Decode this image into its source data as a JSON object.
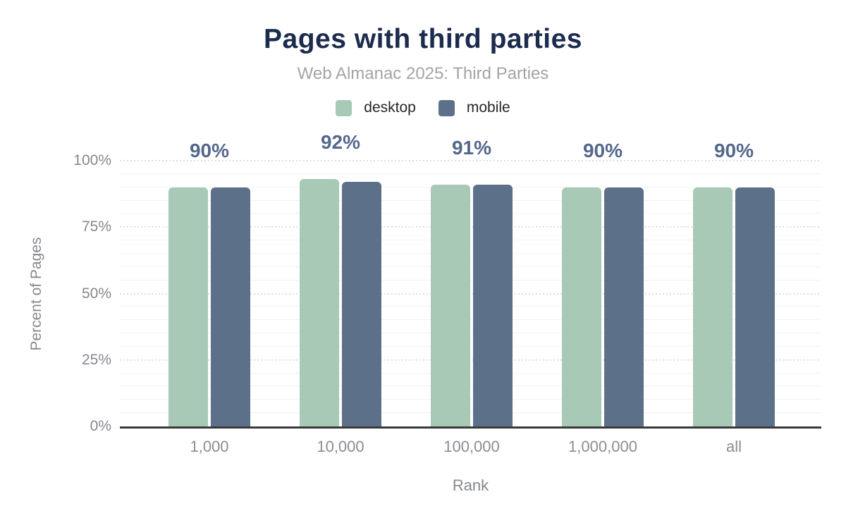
{
  "header": {
    "title": "Pages with third parties",
    "subtitle": "Web Almanac 2025: Third Parties"
  },
  "legend": {
    "items": [
      {
        "label": "desktop",
        "color": "#a8c9b6"
      },
      {
        "label": "mobile",
        "color": "#5d7089"
      }
    ]
  },
  "chart_data": {
    "type": "bar",
    "title": "Pages with third parties",
    "subtitle": "Web Almanac 2025: Third Parties",
    "xlabel": "Rank",
    "ylabel": "Percent of Pages",
    "categories": [
      "1,000",
      "10,000",
      "100,000",
      "1,000,000",
      "all"
    ],
    "series": [
      {
        "name": "desktop",
        "color": "#a8c9b6",
        "values": [
          90,
          93,
          91,
          90,
          90
        ]
      },
      {
        "name": "mobile",
        "color": "#5d7089",
        "values": [
          90,
          92,
          91,
          90,
          90
        ]
      }
    ],
    "bar_value_labels": [
      "90%",
      "92%",
      "91%",
      "90%",
      "90%"
    ],
    "y_ticks": [
      {
        "value": 0,
        "label": "0%"
      },
      {
        "value": 25,
        "label": "25%"
      },
      {
        "value": 50,
        "label": "50%"
      },
      {
        "value": 75,
        "label": "75%"
      },
      {
        "value": 100,
        "label": "100%"
      }
    ],
    "ylim": [
      0,
      100
    ],
    "major_grid_step": 25,
    "minor_grid_step": 5,
    "grid": "horizontal; dotted major lines every 25%, faint solid minor lines every 5%",
    "legend_position": "top",
    "colors": {
      "title": "#1c2b4e",
      "subtitle": "#a3a4a8",
      "data_label": "#54688c",
      "axis_text": "#85888e",
      "axis_line": "#38393b",
      "grid_major": "#d6d7d9",
      "grid_minor": "#f2f2f3",
      "legend_text": "#232529"
    }
  }
}
